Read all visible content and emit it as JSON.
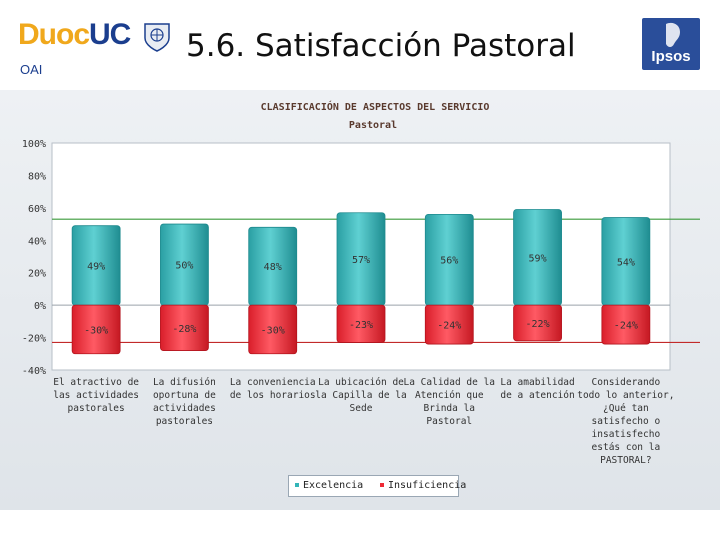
{
  "header": {
    "logo_duoc": "Duoc",
    "logo_uc": "UC",
    "sub_label": "OAI",
    "title": "5.6. Satisfacción Pastoral",
    "partner_logo": "Ipsos"
  },
  "colors": {
    "excelencia": "#33b5b8",
    "insuficiencia": "#ee2a35",
    "threshold_pos": "#3a9a3a",
    "threshold_neg": "#c22a2a"
  },
  "chart_data": {
    "type": "bar",
    "title": "CLASIFICACIÓN DE ASPECTOS DEL SERVICIO",
    "subtitle": "Pastoral",
    "ylim": [
      -40,
      100
    ],
    "yticks": [
      100,
      80,
      60,
      40,
      20,
      0,
      -20,
      -40
    ],
    "ytick_labels": [
      "100%",
      "80%",
      "60%",
      "40%",
      "20%",
      "0%",
      "-20%",
      "-40%"
    ],
    "threshold_lines": [
      53,
      -23
    ],
    "categories": [
      [
        "El atractivo de",
        "las actividades",
        "pastorales"
      ],
      [
        "La difusión",
        "oportuna de",
        "actividades",
        "pastorales"
      ],
      [
        "La conveniencia",
        "de los horarios"
      ],
      [
        "La ubicación de",
        "la Capilla de la",
        "Sede"
      ],
      [
        "La Calidad de la",
        "Atención que",
        "Brinda la",
        "Pastoral"
      ],
      [
        "La amabilidad",
        "de a atención"
      ],
      [
        "Considerando",
        "todo lo anterior,",
        "¿Qué tan",
        "satisfecho o",
        "insatisfecho",
        "estás con la",
        "PASTORAL?"
      ]
    ],
    "series": [
      {
        "name": "Excelencia",
        "values": [
          49,
          50,
          48,
          57,
          56,
          59,
          54
        ],
        "labels": [
          "49%",
          "50%",
          "48%",
          "57%",
          "56%",
          "59%",
          "54%"
        ]
      },
      {
        "name": "Insuficiencia",
        "values": [
          -30,
          -28,
          -30,
          -23,
          -24,
          -22,
          -24
        ],
        "labels": [
          "-30%",
          "-28%",
          "-30%",
          "-23%",
          "-24%",
          "-22%",
          "-24%"
        ]
      }
    ],
    "legend": {
      "position": "bottom",
      "labels": [
        "Excelencia",
        "Insuficiencia"
      ]
    }
  }
}
